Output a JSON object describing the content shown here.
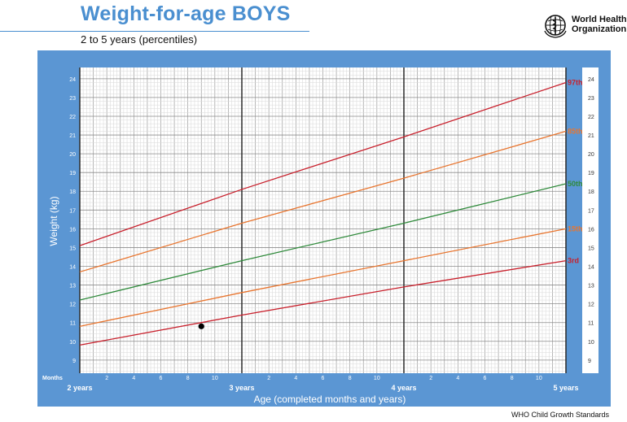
{
  "header": {
    "title": "Weight-for-age BOYS",
    "subtitle": "2 to 5 years (percentiles)"
  },
  "org": {
    "line1": "World Health",
    "line2": "Organization"
  },
  "footer": {
    "text": "WHO Child Growth Standards"
  },
  "colors": {
    "panel": "#5b96d3",
    "grid": "#b9b9b9",
    "p97": "#c8202c",
    "p85": "#e8752f",
    "p50": "#2f8a3b",
    "p15": "#e8752f",
    "p3": "#c8202c"
  },
  "chart_data": {
    "type": "line",
    "xlabel": "Age (completed months and years)",
    "ylabel": "Weight (kg)",
    "xlim": [
      24,
      60
    ],
    "ylim": [
      8.3,
      24.6
    ],
    "grid": true,
    "months_label": "Months",
    "year_ticks": [
      {
        "x": 24,
        "label": "2 years"
      },
      {
        "x": 36,
        "label": "3 years"
      },
      {
        "x": 48,
        "label": "4 years"
      },
      {
        "x": 60,
        "label": "5 years"
      }
    ],
    "month_ticks": [
      {
        "x": 26,
        "label": "2"
      },
      {
        "x": 28,
        "label": "4"
      },
      {
        "x": 30,
        "label": "6"
      },
      {
        "x": 32,
        "label": "8"
      },
      {
        "x": 34,
        "label": "10"
      },
      {
        "x": 38,
        "label": "2"
      },
      {
        "x": 40,
        "label": "4"
      },
      {
        "x": 42,
        "label": "6"
      },
      {
        "x": 44,
        "label": "8"
      },
      {
        "x": 46,
        "label": "10"
      },
      {
        "x": 50,
        "label": "2"
      },
      {
        "x": 52,
        "label": "4"
      },
      {
        "x": 54,
        "label": "6"
      },
      {
        "x": 56,
        "label": "8"
      },
      {
        "x": 58,
        "label": "10"
      }
    ],
    "y_ticks": [
      "9",
      "10",
      "11",
      "12",
      "13",
      "14",
      "15",
      "16",
      "17",
      "18",
      "19",
      "20",
      "21",
      "22",
      "23",
      "24"
    ],
    "series": [
      {
        "name": "97th",
        "color_key": "p97",
        "x": [
          24,
          36,
          48,
          60
        ],
        "y": [
          15.1,
          18.1,
          20.9,
          23.8
        ]
      },
      {
        "name": "85th",
        "color_key": "p85",
        "x": [
          24,
          36,
          48,
          60
        ],
        "y": [
          13.7,
          16.3,
          18.7,
          21.2
        ]
      },
      {
        "name": "50th",
        "color_key": "p50",
        "x": [
          24,
          36,
          48,
          60
        ],
        "y": [
          12.2,
          14.3,
          16.3,
          18.4
        ]
      },
      {
        "name": "15th",
        "color_key": "p15",
        "x": [
          24,
          36,
          48,
          60
        ],
        "y": [
          10.8,
          12.6,
          14.3,
          16.0
        ]
      },
      {
        "name": "3rd",
        "color_key": "p3",
        "x": [
          24,
          36,
          48,
          60
        ],
        "y": [
          9.8,
          11.4,
          12.9,
          14.3
        ]
      }
    ],
    "points": [
      {
        "x": 33,
        "y": 10.8
      }
    ]
  }
}
